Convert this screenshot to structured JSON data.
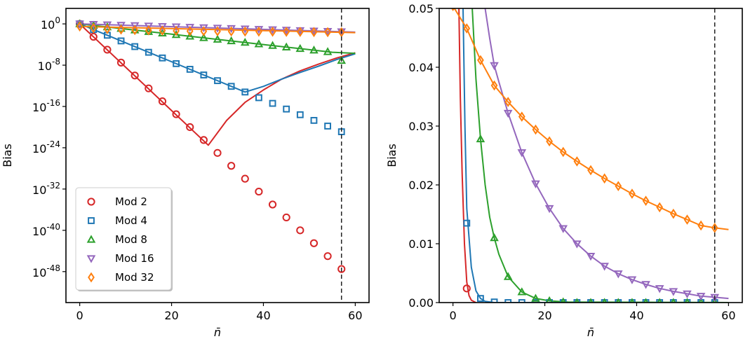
{
  "chart_data": [
    {
      "type": "scatter+line",
      "panel": "left",
      "xlabel": "n̄",
      "ylabel": "Bias",
      "yscale": "log",
      "xlim": [
        -3,
        63
      ],
      "ylim_log10": [
        -54,
        3
      ],
      "xticks": [
        0,
        20,
        40,
        60
      ],
      "xtick_labels": [
        "0",
        "20",
        "40",
        "60"
      ],
      "yticks_log10": [
        0,
        -8,
        -16,
        -24,
        -32,
        -40,
        -48
      ],
      "ytick_labels": [
        {
          "base": "10",
          "exp": "0"
        },
        {
          "base": "10",
          "exp": "-8"
        },
        {
          "base": "10",
          "exp": "-16"
        },
        {
          "base": "10",
          "exp": "-24"
        },
        {
          "base": "10",
          "exp": "-32"
        },
        {
          "base": "10",
          "exp": "-40"
        },
        {
          "base": "10",
          "exp": "-48"
        }
      ],
      "vline_x": 57,
      "legend": {
        "position": "lower-left",
        "entries": [
          "Mod 2",
          "Mod 4",
          "Mod 8",
          "Mod 16",
          "Mod 32"
        ]
      },
      "series": [
        {
          "name": "Mod 2",
          "color": "#d62728",
          "marker": "circle",
          "x": [
            0,
            3,
            6,
            9,
            12,
            15,
            18,
            21,
            24,
            27,
            30,
            33,
            36,
            39,
            42,
            45,
            48,
            51,
            54,
            57
          ],
          "log10_y": [
            0,
            -2.5,
            -5,
            -7.5,
            -10,
            -12.5,
            -15,
            -17.5,
            -20,
            -22.5,
            -25,
            -27.5,
            -30,
            -32.5,
            -35,
            -37.5,
            -40,
            -42.5,
            -45,
            -47.5
          ],
          "curve_x": [
            0,
            28,
            32,
            36,
            40,
            44,
            48,
            52,
            56,
            60
          ],
          "curve_log10_y": [
            0,
            -23.5,
            -18.7,
            -15.2,
            -12.8,
            -10.7,
            -9.1,
            -7.8,
            -6.6,
            -5.6
          ]
        },
        {
          "name": "Mod 4",
          "color": "#1f77b4",
          "marker": "square",
          "x": [
            0,
            3,
            6,
            9,
            12,
            15,
            18,
            21,
            24,
            27,
            30,
            33,
            36,
            39,
            42,
            45,
            48,
            51,
            54,
            57
          ],
          "log10_y": [
            0,
            -1.1,
            -2.2,
            -3.3,
            -4.4,
            -5.5,
            -6.6,
            -7.7,
            -8.8,
            -9.9,
            -11,
            -12.1,
            -13.2,
            -14.3,
            -15.4,
            -16.5,
            -17.6,
            -18.7,
            -19.8,
            -20.9
          ],
          "curve_x": [
            0,
            36,
            40,
            44,
            48,
            52,
            56,
            60
          ],
          "curve_log10_y": [
            0,
            -13.2,
            -12.1,
            -10.7,
            -9.4,
            -8.2,
            -6.9,
            -5.8
          ]
        },
        {
          "name": "Mod 8",
          "color": "#2ca02c",
          "marker": "triangle-up",
          "x": [
            0,
            3,
            6,
            9,
            12,
            15,
            18,
            21,
            24,
            27,
            30,
            33,
            36,
            39,
            42,
            45,
            48,
            51,
            54,
            57
          ],
          "log10_y": [
            0,
            -0.3,
            -0.6,
            -0.9,
            -1.2,
            -1.5,
            -1.8,
            -2.1,
            -2.4,
            -2.7,
            -3,
            -3.3,
            -3.6,
            -3.9,
            -4.2,
            -4.5,
            -4.8,
            -5.1,
            -5.4,
            -7.1
          ],
          "curve_x": [
            0,
            10,
            20,
            30,
            40,
            50,
            55,
            60
          ],
          "curve_log10_y": [
            0,
            -1,
            -2,
            -3,
            -4,
            -5,
            -5.5,
            -5.7
          ]
        },
        {
          "name": "Mod 16",
          "color": "#9467bd",
          "marker": "triangle-down",
          "x": [
            0,
            3,
            6,
            9,
            12,
            15,
            18,
            21,
            24,
            27,
            30,
            33,
            36,
            39,
            42,
            45,
            48,
            51,
            54,
            57
          ],
          "log10_y": [
            0,
            -0.08,
            -0.16,
            -0.24,
            -0.32,
            -0.4,
            -0.48,
            -0.56,
            -0.64,
            -0.72,
            -0.8,
            -0.88,
            -0.96,
            -1.04,
            -1.12,
            -1.2,
            -1.28,
            -1.36,
            -1.44,
            -1.5
          ],
          "curve_x": [
            0,
            60
          ],
          "curve_log10_y": [
            0,
            -1.6
          ]
        },
        {
          "name": "Mod 32",
          "color": "#ff7f0e",
          "marker": "diamond",
          "x": [
            0,
            3,
            6,
            9,
            12,
            15,
            18,
            21,
            24,
            27,
            30,
            33,
            36,
            39,
            42,
            45,
            48,
            51,
            54,
            57
          ],
          "log10_y": [
            -0.5,
            -0.8,
            -1.0,
            -1.1,
            -1.2,
            -1.25,
            -1.3,
            -1.35,
            -1.4,
            -1.42,
            -1.44,
            -1.46,
            -1.48,
            -1.5,
            -1.52,
            -1.54,
            -1.56,
            -1.58,
            -1.6,
            -1.62
          ],
          "curve_x": [
            0,
            60
          ],
          "curve_log10_y": [
            -0.5,
            -1.7
          ]
        }
      ]
    },
    {
      "type": "scatter+line",
      "panel": "right",
      "xlabel": "n̄",
      "ylabel": "Bias",
      "yscale": "linear",
      "xlim": [
        -3,
        63
      ],
      "ylim": [
        0,
        0.05
      ],
      "xticks": [
        0,
        20,
        40,
        60
      ],
      "xtick_labels": [
        "0",
        "20",
        "40",
        "60"
      ],
      "yticks": [
        0,
        0.01,
        0.02,
        0.03,
        0.04,
        0.05
      ],
      "ytick_labels": [
        "0.00",
        "0.01",
        "0.02",
        "0.03",
        "0.04",
        "0.05"
      ],
      "vline_x": 57,
      "series": [
        {
          "name": "Mod 2",
          "color": "#d62728",
          "marker": "circle",
          "x": [
            3
          ],
          "y": [
            0.0024
          ],
          "curve_x": [
            1.3,
            1.6,
            2,
            2.5,
            3,
            3.5,
            4,
            5
          ],
          "curve_y": [
            0.05,
            0.035,
            0.022,
            0.01,
            0.0035,
            0.0012,
            0.0004,
            0
          ]
        },
        {
          "name": "Mod 4",
          "color": "#1f77b4",
          "marker": "square",
          "x": [
            3,
            6,
            9,
            12,
            15,
            18,
            21,
            24,
            27,
            30,
            33,
            36,
            39,
            42,
            45,
            48,
            51,
            54,
            57
          ],
          "y": [
            0.0135,
            0.0007,
            0.0001,
            0,
            0,
            0,
            0,
            0,
            0,
            0,
            0,
            0,
            0,
            0,
            0,
            0,
            0,
            0,
            0
          ],
          "curve_x": [
            2.2,
            2.6,
            3,
            4,
            5,
            6,
            7,
            9,
            60
          ],
          "curve_y": [
            0.05,
            0.03,
            0.016,
            0.006,
            0.002,
            0.0007,
            0.0002,
            0,
            0
          ]
        },
        {
          "name": "Mod 8",
          "color": "#2ca02c",
          "marker": "triangle-up",
          "x": [
            6,
            9,
            12,
            15,
            18,
            21,
            24,
            27,
            30,
            33,
            36,
            39,
            42,
            45,
            48,
            51,
            54,
            57
          ],
          "y": [
            0.0278,
            0.011,
            0.0044,
            0.0018,
            0.0007,
            0.0003,
            0.0001,
            0,
            0,
            0,
            0,
            0,
            0,
            0,
            0,
            0,
            0,
            0
          ],
          "curve_x": [
            4.2,
            5,
            6,
            7,
            8,
            9,
            10,
            12,
            15,
            18,
            21,
            25,
            60
          ],
          "curve_y": [
            0.05,
            0.038,
            0.0278,
            0.02,
            0.0145,
            0.011,
            0.0082,
            0.0044,
            0.0018,
            0.0007,
            0.0003,
            0.0001,
            0
          ]
        },
        {
          "name": "Mod 16",
          "color": "#9467bd",
          "marker": "triangle-down",
          "x": [
            9,
            12,
            15,
            18,
            21,
            24,
            27,
            30,
            33,
            36,
            39,
            42,
            45,
            48,
            51,
            54,
            57
          ],
          "y": [
            0.0403,
            0.0322,
            0.0255,
            0.0202,
            0.016,
            0.0126,
            0.01,
            0.0079,
            0.0062,
            0.0049,
            0.0039,
            0.0031,
            0.0024,
            0.0019,
            0.0015,
            0.0011,
            0.0009
          ],
          "curve_x": [
            7,
            8,
            9,
            10,
            12,
            15,
            18,
            21,
            24,
            27,
            30,
            33,
            36,
            39,
            42,
            45,
            48,
            51,
            54,
            57,
            60
          ],
          "curve_y": [
            0.05,
            0.0449,
            0.0403,
            0.0375,
            0.0322,
            0.0255,
            0.0202,
            0.016,
            0.0126,
            0.01,
            0.0079,
            0.0062,
            0.0049,
            0.0039,
            0.0031,
            0.0024,
            0.0019,
            0.0015,
            0.0011,
            0.0009,
            0.0007
          ]
        },
        {
          "name": "Mod 32",
          "color": "#ff7f0e",
          "marker": "diamond",
          "x": [
            0,
            3,
            6,
            9,
            12,
            15,
            18,
            21,
            24,
            27,
            30,
            33,
            36,
            39,
            42,
            45,
            48,
            51,
            54,
            57
          ],
          "y": [
            0.0504,
            0.0466,
            0.0412,
            0.0369,
            0.0341,
            0.0316,
            0.0294,
            0.0274,
            0.0256,
            0.024,
            0.0225,
            0.0211,
            0.0198,
            0.0185,
            0.0173,
            0.0162,
            0.0151,
            0.0141,
            0.0131,
            0.0127
          ],
          "curve_x": [
            0,
            3,
            6,
            9,
            12,
            15,
            18,
            21,
            24,
            27,
            30,
            33,
            36,
            39,
            42,
            45,
            48,
            51,
            54,
            57,
            60
          ],
          "curve_y": [
            0.0504,
            0.0466,
            0.0412,
            0.0369,
            0.0341,
            0.0316,
            0.0294,
            0.0274,
            0.0256,
            0.024,
            0.0225,
            0.0211,
            0.0198,
            0.0185,
            0.0173,
            0.0162,
            0.0151,
            0.0141,
            0.0131,
            0.0127,
            0.0124
          ]
        }
      ]
    }
  ]
}
